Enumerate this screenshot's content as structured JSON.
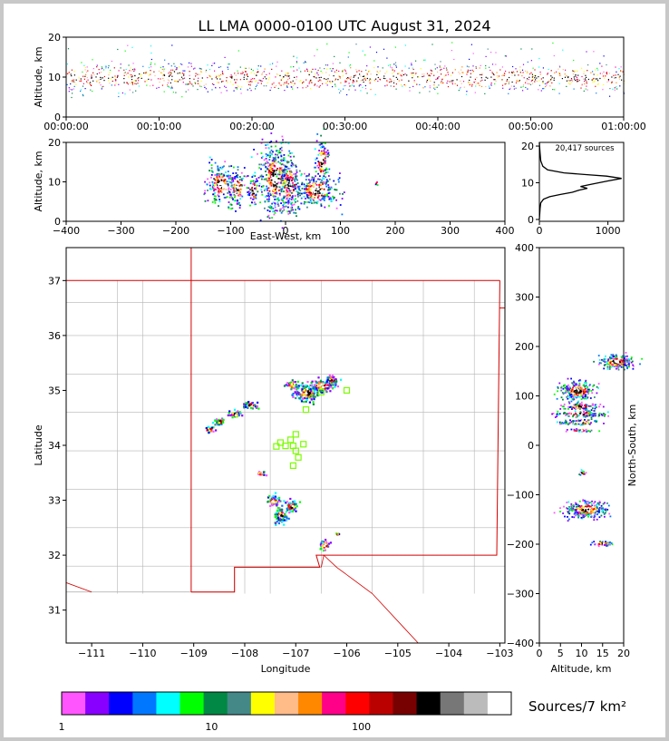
{
  "title": "LL LMA 0000-0100 UTC August 31, 2024",
  "colors": {
    "border": "#c8c8c8",
    "state_lines": "#d40000",
    "county_lines": "#b4b4b4",
    "station_marker": "#7cfc00"
  },
  "chart_data": [
    {
      "id": "time_height",
      "type": "scatter",
      "xlabel": "",
      "ylabel": "Altitude, km",
      "x_ticks": [
        "00:00:00",
        "00:10:00",
        "00:20:00",
        "00:30:00",
        "00:40:00",
        "00:50:00",
        "01:00:00"
      ],
      "xlim_minutes": [
        0,
        60
      ],
      "ylim": [
        0,
        20
      ],
      "y_ticks": [
        0,
        10,
        20
      ],
      "altitude_band_km": [
        5,
        16
      ],
      "altitude_peak_km": 10
    },
    {
      "id": "ew_height",
      "type": "heatmap",
      "xlabel": "East-West, km",
      "ylabel": "Altitude, km",
      "xlim": [
        -400,
        400
      ],
      "x_ticks": [
        -400,
        -300,
        -200,
        -100,
        0,
        100,
        200,
        300,
        400
      ],
      "ylim": [
        0,
        20
      ],
      "y_ticks": [
        0,
        10,
        20
      ],
      "clusters": [
        {
          "x": -120,
          "z": 9.5,
          "w": 25,
          "h": 5
        },
        {
          "x": -90,
          "z": 8.5,
          "w": 15,
          "h": 5
        },
        {
          "x": -60,
          "z": 8,
          "w": 10,
          "h": 4
        },
        {
          "x": -20,
          "z": 11,
          "w": 30,
          "h": 9
        },
        {
          "x": 5,
          "z": 9.5,
          "w": 20,
          "h": 7
        },
        {
          "x": 55,
          "z": 8,
          "w": 40,
          "h": 4
        },
        {
          "x": 65,
          "z": 15.5,
          "w": 12,
          "h": 6
        },
        {
          "x": 165,
          "z": 10,
          "w": 2,
          "h": 1
        }
      ]
    },
    {
      "id": "alt_hist",
      "type": "line",
      "annotation": "20,417 sources",
      "xlim": [
        0,
        1230
      ],
      "x_ticks": [
        0,
        1000
      ],
      "ylim": [
        -0.5,
        21
      ],
      "y_ticks": [
        0,
        10,
        20
      ],
      "points": [
        [
          0,
          0
        ],
        [
          10,
          3
        ],
        [
          20,
          4.5
        ],
        [
          60,
          5.5
        ],
        [
          150,
          6.2
        ],
        [
          300,
          6.8
        ],
        [
          480,
          7.4
        ],
        [
          580,
          8.0
        ],
        [
          700,
          8.5
        ],
        [
          600,
          9.0
        ],
        [
          760,
          9.6
        ],
        [
          1000,
          10.5
        ],
        [
          1200,
          11.2
        ],
        [
          980,
          11.8
        ],
        [
          700,
          12.2
        ],
        [
          360,
          12.7
        ],
        [
          120,
          13.5
        ],
        [
          50,
          14.5
        ],
        [
          20,
          16
        ],
        [
          10,
          18
        ],
        [
          3,
          20
        ],
        [
          0,
          21
        ]
      ]
    },
    {
      "id": "plan_view",
      "type": "heatmap",
      "xlabel": "Longitude",
      "ylabel": "Latitude",
      "xlim": [
        -111.5,
        -102.9
      ],
      "x_ticks": [
        -111,
        -110,
        -109,
        -108,
        -107,
        -106,
        -105,
        -104,
        -103
      ],
      "x_tick_labels": [
        "−111",
        "−110",
        "−109",
        "−108",
        "−107",
        "−106",
        "−105",
        "−104",
        "−103"
      ],
      "ylim": [
        30.4,
        37.6
      ],
      "y_ticks": [
        31,
        32,
        33,
        34,
        35,
        36,
        37
      ],
      "clusters": [
        {
          "lon": -106.8,
          "lat": 34.97,
          "w": 0.25,
          "h": 0.15
        },
        {
          "lon": -106.5,
          "lat": 35.1,
          "w": 0.25,
          "h": 0.12
        },
        {
          "lon": -106.3,
          "lat": 35.2,
          "w": 0.12,
          "h": 0.1
        },
        {
          "lon": -107.1,
          "lat": 35.12,
          "w": 0.12,
          "h": 0.08
        },
        {
          "lon": -107.3,
          "lat": 32.75,
          "w": 0.12,
          "h": 0.15
        },
        {
          "lon": -107.1,
          "lat": 32.9,
          "w": 0.12,
          "h": 0.12
        },
        {
          "lon": -107.45,
          "lat": 33.0,
          "w": 0.12,
          "h": 0.1
        },
        {
          "lon": -106.45,
          "lat": 32.2,
          "w": 0.1,
          "h": 0.1
        },
        {
          "lon": -107.9,
          "lat": 34.75,
          "w": 0.15,
          "h": 0.06
        },
        {
          "lon": -108.2,
          "lat": 34.58,
          "w": 0.15,
          "h": 0.06
        },
        {
          "lon": -108.5,
          "lat": 34.45,
          "w": 0.12,
          "h": 0.06
        },
        {
          "lon": -108.7,
          "lat": 34.3,
          "w": 0.12,
          "h": 0.05
        },
        {
          "lon": -107.7,
          "lat": 33.5,
          "w": 0.08,
          "h": 0.06
        },
        {
          "lon": -106.2,
          "lat": 32.4,
          "w": 0.03,
          "h": 0.03
        }
      ],
      "stations": [
        [
          -106.0,
          35.0
        ],
        [
          -106.5,
          34.97
        ],
        [
          -106.8,
          34.65
        ],
        [
          -107.3,
          34.05
        ],
        [
          -107.1,
          34.1
        ],
        [
          -107.0,
          34.2
        ],
        [
          -107.2,
          33.99
        ],
        [
          -107.05,
          33.99
        ],
        [
          -106.85,
          34.02
        ],
        [
          -107.0,
          33.9
        ],
        [
          -106.95,
          33.78
        ],
        [
          -107.05,
          33.63
        ],
        [
          -107.38,
          33.98
        ]
      ]
    },
    {
      "id": "ns_height",
      "type": "heatmap",
      "xlabel": "Altitude, km",
      "ylabel": "North-South, km",
      "xlim": [
        0,
        20
      ],
      "x_ticks": [
        0,
        5,
        10,
        15,
        20
      ],
      "ylim": [
        -400,
        400
      ],
      "y_ticks": [
        -400,
        -300,
        -200,
        -100,
        0,
        100,
        200,
        300,
        400
      ],
      "y_tick_labels": [
        "−400",
        "−300",
        "−200",
        "−100",
        "0",
        "100",
        "200",
        "300",
        "400"
      ],
      "clusters": [
        {
          "z": 9,
          "y": 112,
          "w": 4,
          "h": 20
        },
        {
          "z": 9.5,
          "y": 80,
          "w": 4,
          "h": 8
        },
        {
          "z": 9.5,
          "y": 65,
          "w": 6,
          "h": 6
        },
        {
          "z": 9.5,
          "y": 48,
          "w": 5,
          "h": 5
        },
        {
          "z": 9.5,
          "y": 32,
          "w": 4,
          "h": 3
        },
        {
          "z": 10,
          "y": -55,
          "w": 1,
          "h": 5
        },
        {
          "z": 11,
          "y": -128,
          "w": 5,
          "h": 18
        },
        {
          "z": 15,
          "y": -197,
          "w": 3,
          "h": 5
        },
        {
          "z": 18,
          "y": 170,
          "w": 4,
          "h": 15
        }
      ]
    }
  ],
  "colorbar": {
    "label": "Sources/7 km²",
    "tick_labels": [
      "1",
      "10",
      "100"
    ],
    "tick_values": [
      1,
      10,
      100
    ],
    "min": 1,
    "max": 1000,
    "colors": [
      "#ff55ff",
      "#8800ff",
      "#0000ff",
      "#0077ff",
      "#00ffff",
      "#00ff00",
      "#008844",
      "#448888",
      "#ffff00",
      "#ffbb88",
      "#ff8800",
      "#ff0088",
      "#ff0000",
      "#bb0000",
      "#770000",
      "#000000",
      "#777777",
      "#bbbbbb",
      "#ffffff"
    ]
  }
}
